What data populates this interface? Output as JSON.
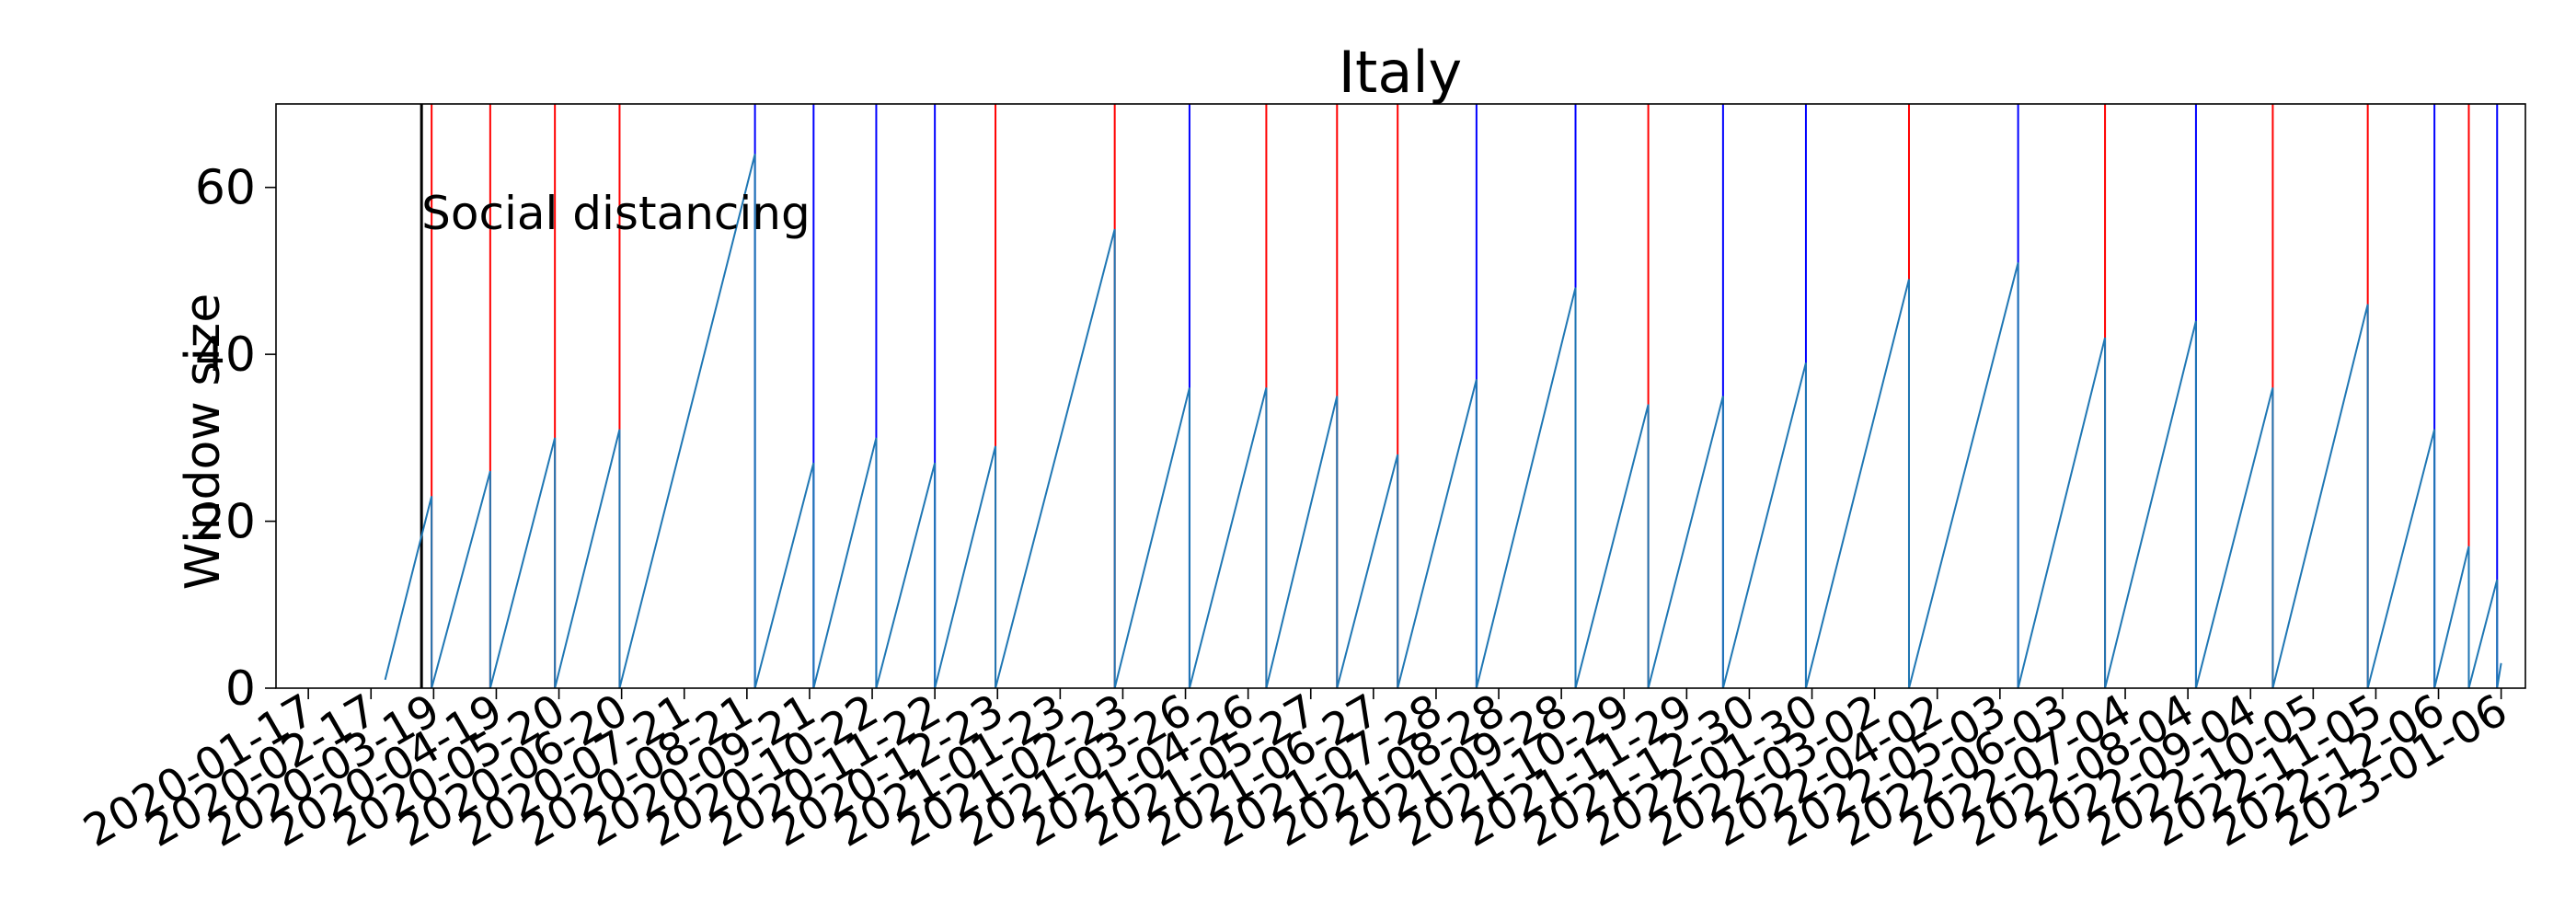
{
  "chart_data": {
    "type": "line",
    "title": "Italy",
    "xlabel": "",
    "ylabel": "Window size",
    "ylim": [
      0,
      70
    ],
    "yticks": [
      0,
      20,
      40,
      60
    ],
    "xlim": [
      "2020-01-01",
      "2023-01-18"
    ],
    "grid": false,
    "x_ticks": [
      "2020-01-17",
      "2020-02-17",
      "2020-03-19",
      "2020-04-19",
      "2020-05-20",
      "2020-06-20",
      "2020-07-21",
      "2020-08-21",
      "2020-09-21",
      "2020-10-22",
      "2020-11-22",
      "2020-12-23",
      "2021-01-23",
      "2021-02-23",
      "2021-03-26",
      "2021-04-26",
      "2021-05-27",
      "2021-06-27",
      "2021-07-28",
      "2021-08-28",
      "2021-09-28",
      "2021-10-29",
      "2021-11-29",
      "2021-12-30",
      "2022-01-30",
      "2022-03-02",
      "2022-04-02",
      "2022-05-03",
      "2022-06-03",
      "2022-07-04",
      "2022-08-04",
      "2022-09-04",
      "2022-10-05",
      "2022-11-05",
      "2022-12-06",
      "2023-01-06"
    ],
    "series": [
      {
        "color": "#1f77b4",
        "segments": [
          {
            "start": "2020-02-24",
            "end": "2020-03-18",
            "peak": 23
          },
          {
            "start": "2020-03-18",
            "end": "2020-04-16",
            "peak": 26
          },
          {
            "start": "2020-04-16",
            "end": "2020-05-18",
            "peak": 30
          },
          {
            "start": "2020-05-18",
            "end": "2020-06-19",
            "peak": 31
          },
          {
            "start": "2020-06-19",
            "end": "2020-08-25",
            "peak": 64
          },
          {
            "start": "2020-08-25",
            "end": "2020-09-23",
            "peak": 27
          },
          {
            "start": "2020-09-23",
            "end": "2020-10-24",
            "peak": 30
          },
          {
            "start": "2020-10-24",
            "end": "2020-11-22",
            "peak": 27
          },
          {
            "start": "2020-11-22",
            "end": "2020-12-22",
            "peak": 29
          },
          {
            "start": "2020-12-22",
            "end": "2021-02-19",
            "peak": 55
          },
          {
            "start": "2021-02-19",
            "end": "2021-03-28",
            "peak": 36
          },
          {
            "start": "2021-03-28",
            "end": "2021-05-05",
            "peak": 36
          },
          {
            "start": "2021-05-05",
            "end": "2021-06-09",
            "peak": 35
          },
          {
            "start": "2021-06-09",
            "end": "2021-07-09",
            "peak": 28
          },
          {
            "start": "2021-07-09",
            "end": "2021-08-17",
            "peak": 37
          },
          {
            "start": "2021-08-17",
            "end": "2021-10-05",
            "peak": 48
          },
          {
            "start": "2021-10-05",
            "end": "2021-11-10",
            "peak": 34
          },
          {
            "start": "2021-11-10",
            "end": "2021-12-17",
            "peak": 35
          },
          {
            "start": "2021-12-17",
            "end": "2022-01-27",
            "peak": 39
          },
          {
            "start": "2022-01-27",
            "end": "2022-03-19",
            "peak": 49
          },
          {
            "start": "2022-03-19",
            "end": "2022-05-12",
            "peak": 51
          },
          {
            "start": "2022-05-12",
            "end": "2022-06-24",
            "peak": 42
          },
          {
            "start": "2022-06-24",
            "end": "2022-08-08",
            "peak": 44
          },
          {
            "start": "2022-08-08",
            "end": "2022-09-15",
            "peak": 36
          },
          {
            "start": "2022-09-15",
            "end": "2022-11-01",
            "peak": 46
          },
          {
            "start": "2022-11-01",
            "end": "2022-12-04",
            "peak": 31
          },
          {
            "start": "2022-12-04",
            "end": "2022-12-21",
            "peak": 17
          },
          {
            "start": "2022-12-21",
            "end": "2023-01-04",
            "peak": 13
          },
          {
            "start": "2023-01-04",
            "end": "2023-01-06",
            "peak": 3
          }
        ]
      }
    ],
    "vlines": [
      {
        "date": "2020-03-13",
        "color": "#000000",
        "label": "Social distancing"
      },
      {
        "date": "2020-03-18",
        "color": "#ff0000"
      },
      {
        "date": "2020-04-16",
        "color": "#ff0000"
      },
      {
        "date": "2020-05-18",
        "color": "#ff0000"
      },
      {
        "date": "2020-06-19",
        "color": "#ff0000"
      },
      {
        "date": "2020-08-25",
        "color": "#0000ff"
      },
      {
        "date": "2020-09-23",
        "color": "#0000ff"
      },
      {
        "date": "2020-10-24",
        "color": "#0000ff"
      },
      {
        "date": "2020-11-22",
        "color": "#0000ff"
      },
      {
        "date": "2020-12-22",
        "color": "#ff0000"
      },
      {
        "date": "2021-02-19",
        "color": "#ff0000"
      },
      {
        "date": "2021-03-28",
        "color": "#0000ff"
      },
      {
        "date": "2021-05-05",
        "color": "#ff0000"
      },
      {
        "date": "2021-06-09",
        "color": "#ff0000"
      },
      {
        "date": "2021-07-09",
        "color": "#ff0000"
      },
      {
        "date": "2021-08-17",
        "color": "#0000ff"
      },
      {
        "date": "2021-10-05",
        "color": "#0000ff"
      },
      {
        "date": "2021-11-10",
        "color": "#ff0000"
      },
      {
        "date": "2021-12-17",
        "color": "#0000ff"
      },
      {
        "date": "2022-01-27",
        "color": "#0000ff"
      },
      {
        "date": "2022-03-19",
        "color": "#ff0000"
      },
      {
        "date": "2022-05-12",
        "color": "#0000ff"
      },
      {
        "date": "2022-06-24",
        "color": "#ff0000"
      },
      {
        "date": "2022-08-08",
        "color": "#0000ff"
      },
      {
        "date": "2022-09-15",
        "color": "#ff0000"
      },
      {
        "date": "2022-11-01",
        "color": "#ff0000"
      },
      {
        "date": "2022-12-04",
        "color": "#0000ff"
      },
      {
        "date": "2022-12-21",
        "color": "#ff0000"
      },
      {
        "date": "2023-01-04",
        "color": "#0000ff"
      }
    ]
  }
}
